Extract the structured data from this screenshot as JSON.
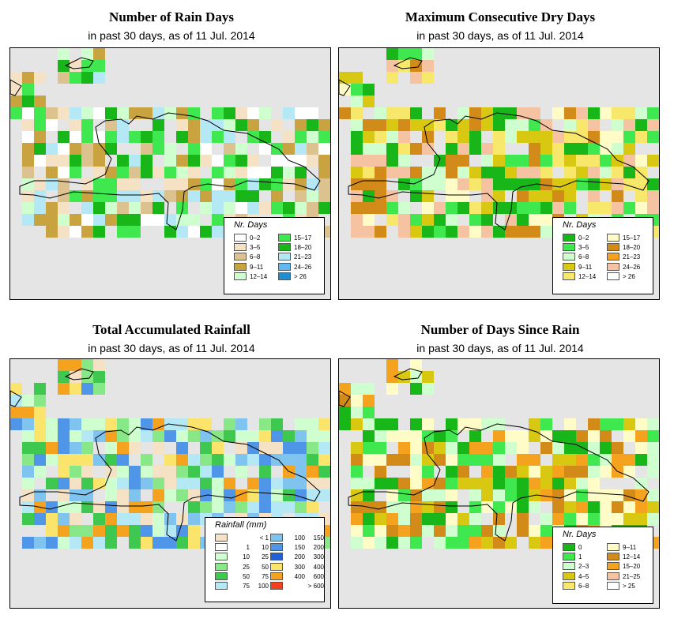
{
  "panels": [
    {
      "id": "rain-days",
      "title": "Number of Rain Days",
      "subtitle": "in past 30 days, as of  11 Jul. 2014",
      "legend": {
        "title": "Nr. Days",
        "items": [
          {
            "label": "0–2",
            "color": "#ffffff"
          },
          {
            "label": "3–5",
            "color": "#f5e1c4"
          },
          {
            "label": "6–8",
            "color": "#dcc28f"
          },
          {
            "label": "9–11",
            "color": "#c8a33f"
          },
          {
            "label": "12–14",
            "color": "#cfffcf"
          },
          {
            "label": "15–17",
            "color": "#3fe84f"
          },
          {
            "label": "18–20",
            "color": "#19b619"
          },
          {
            "label": "21–23",
            "color": "#b4e8f5"
          },
          {
            "label": "24–26",
            "color": "#5fb8ef"
          },
          {
            "label": "> 26",
            "color": "#1e8fd0"
          }
        ]
      }
    },
    {
      "id": "dry-days",
      "title": "Maximum Consecutive Dry Days",
      "subtitle": "in past 30 days, as of  11 Jul. 2014",
      "legend": {
        "title": "Nr. Days",
        "items": [
          {
            "label": "0–2",
            "color": "#19b619"
          },
          {
            "label": "3–5",
            "color": "#3fe84f"
          },
          {
            "label": "6–8",
            "color": "#cfffcf"
          },
          {
            "label": "9–11",
            "color": "#d8c812"
          },
          {
            "label": "12–14",
            "color": "#f7e76b"
          },
          {
            "label": "15–17",
            "color": "#fffcc8"
          },
          {
            "label": "18–20",
            "color": "#d28a18"
          },
          {
            "label": "21–23",
            "color": "#f5a21e"
          },
          {
            "label": "24–26",
            "color": "#f5c3a2"
          },
          {
            "label": "> 26",
            "color": "#ffffff"
          }
        ]
      }
    },
    {
      "id": "rainfall",
      "title": "Total Accumulated Rainfall",
      "subtitle": "in past 30 days, as of  11 Jul. 2014",
      "legend": {
        "title": "Rainfall (mm)",
        "items": [
          {
            "lo": "",
            "hi": "< 1",
            "color": "#f5e1c4"
          },
          {
            "lo": "1",
            "hi": "10",
            "color": "#ffffff"
          },
          {
            "lo": "10",
            "hi": "25",
            "color": "#cfffcf"
          },
          {
            "lo": "25",
            "hi": "50",
            "color": "#88e888"
          },
          {
            "lo": "50",
            "hi": "75",
            "color": "#3fc84f"
          },
          {
            "lo": "75",
            "hi": "100",
            "color": "#b4e8f5"
          },
          {
            "lo": "100",
            "hi": "150",
            "color": "#7fc3ef"
          },
          {
            "lo": "150",
            "hi": "200",
            "color": "#4f96e8"
          },
          {
            "lo": "200",
            "hi": "300",
            "color": "#2060d8"
          },
          {
            "lo": "300",
            "hi": "400",
            "color": "#fae46b"
          },
          {
            "lo": "400",
            "hi": "600",
            "color": "#f5a21e"
          },
          {
            "lo": "",
            "hi": "> 600",
            "color": "#f0401e"
          }
        ]
      }
    },
    {
      "id": "days-since-rain",
      "title": "Number of Days Since Rain",
      "subtitle": "in past 30 days, as of  11 Jul. 2014",
      "legend": {
        "title": "Nr. Days",
        "items": [
          {
            "label": "0",
            "color": "#19b619"
          },
          {
            "label": "1",
            "color": "#3fe84f"
          },
          {
            "label": "2–3",
            "color": "#cfffcf"
          },
          {
            "label": "4–5",
            "color": "#d8c812"
          },
          {
            "label": "6–8",
            "color": "#f7e76b"
          },
          {
            "label": "9–11",
            "color": "#fffcc8"
          },
          {
            "label": "12–14",
            "color": "#d28a18"
          },
          {
            "label": "15–20",
            "color": "#f5a21e"
          },
          {
            "label": "21–25",
            "color": "#f5c3a2"
          },
          {
            "label": "> 25",
            "color": "#ffffff"
          }
        ]
      }
    }
  ]
}
